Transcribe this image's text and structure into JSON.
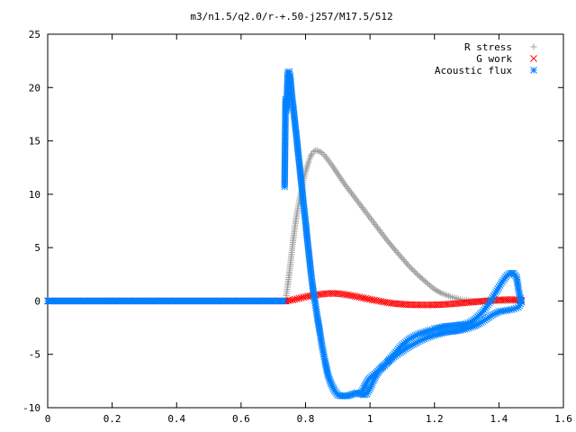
{
  "chart_data": {
    "type": "scatter",
    "title": "m3/n1.5/q2.0/r-+.50-j257/M17.5/512",
    "xlabel": "",
    "ylabel": "",
    "xlim": [
      0,
      1.6
    ],
    "ylim": [
      -10,
      25
    ],
    "x_ticks": [
      0,
      0.2,
      0.4,
      0.6,
      0.8,
      1,
      1.2,
      1.4,
      1.6
    ],
    "x_tick_labels": [
      "0",
      "0.2",
      "0.4",
      "0.6",
      "0.8",
      "1",
      "1.2",
      "1.4",
      "1.6"
    ],
    "y_ticks": [
      -10,
      -5,
      0,
      5,
      10,
      15,
      20,
      25
    ],
    "y_tick_labels": [
      "-10",
      "-5",
      "0",
      "5",
      "10",
      "15",
      "20",
      "25"
    ],
    "grid": false,
    "legend_position": "top-right",
    "series": [
      {
        "name": "R stress",
        "marker": "plus",
        "color": "#a0a0a0",
        "points": [
          [
            0.74,
            0.5
          ],
          [
            0.745,
            1.5
          ],
          [
            0.75,
            2.7
          ],
          [
            0.755,
            4.0
          ],
          [
            0.76,
            5.3
          ],
          [
            0.765,
            6.5
          ],
          [
            0.77,
            7.6
          ],
          [
            0.775,
            8.5
          ],
          [
            0.78,
            9.3
          ],
          [
            0.785,
            10.0
          ],
          [
            0.79,
            10.8
          ],
          [
            0.795,
            11.5
          ],
          [
            0.8,
            12.1
          ],
          [
            0.805,
            12.6
          ],
          [
            0.81,
            13.1
          ],
          [
            0.815,
            13.5
          ],
          [
            0.82,
            13.8
          ],
          [
            0.825,
            14.0
          ],
          [
            0.83,
            14.1
          ],
          [
            0.835,
            14.1
          ],
          [
            0.84,
            14.05
          ],
          [
            0.85,
            13.9
          ],
          [
            0.86,
            13.6
          ],
          [
            0.88,
            12.8
          ],
          [
            0.9,
            11.9
          ],
          [
            0.92,
            11.0
          ],
          [
            0.95,
            9.8
          ],
          [
            0.98,
            8.6
          ],
          [
            1.0,
            7.8
          ],
          [
            1.02,
            7.0
          ],
          [
            1.05,
            5.8
          ],
          [
            1.08,
            4.7
          ],
          [
            1.1,
            4.0
          ],
          [
            1.12,
            3.3
          ],
          [
            1.15,
            2.4
          ],
          [
            1.18,
            1.6
          ],
          [
            1.2,
            1.1
          ],
          [
            1.22,
            0.75
          ],
          [
            1.25,
            0.4
          ],
          [
            1.28,
            0.15
          ],
          [
            1.3,
            0.05
          ],
          [
            1.32,
            0.0
          ],
          [
            1.35,
            0.0
          ],
          [
            1.4,
            0.0
          ],
          [
            1.45,
            0.0
          ],
          [
            1.47,
            0.0
          ]
        ]
      },
      {
        "name": "G work",
        "marker": "cross",
        "color": "#ff0000",
        "points": [
          [
            0.74,
            0.0
          ],
          [
            0.76,
            0.1
          ],
          [
            0.78,
            0.25
          ],
          [
            0.8,
            0.4
          ],
          [
            0.82,
            0.5
          ],
          [
            0.84,
            0.6
          ],
          [
            0.86,
            0.68
          ],
          [
            0.88,
            0.72
          ],
          [
            0.9,
            0.7
          ],
          [
            0.92,
            0.62
          ],
          [
            0.94,
            0.52
          ],
          [
            0.96,
            0.4
          ],
          [
            0.98,
            0.28
          ],
          [
            1.0,
            0.15
          ],
          [
            1.02,
            0.04
          ],
          [
            1.04,
            -0.08
          ],
          [
            1.06,
            -0.18
          ],
          [
            1.08,
            -0.25
          ],
          [
            1.1,
            -0.3
          ],
          [
            1.12,
            -0.34
          ],
          [
            1.14,
            -0.36
          ],
          [
            1.16,
            -0.37
          ],
          [
            1.18,
            -0.37
          ],
          [
            1.2,
            -0.36
          ],
          [
            1.22,
            -0.34
          ],
          [
            1.24,
            -0.3
          ],
          [
            1.26,
            -0.26
          ],
          [
            1.28,
            -0.2
          ],
          [
            1.3,
            -0.15
          ],
          [
            1.32,
            -0.1
          ],
          [
            1.34,
            -0.05
          ],
          [
            1.36,
            0.0
          ],
          [
            1.38,
            0.05
          ],
          [
            1.4,
            0.1
          ],
          [
            1.42,
            0.12
          ],
          [
            1.44,
            0.13
          ],
          [
            1.46,
            0.1
          ],
          [
            1.47,
            0.05
          ]
        ]
      },
      {
        "name": "Acoustic flux",
        "marker": "star",
        "color": "#0080ff",
        "points": [
          [
            0.735,
            10.7
          ],
          [
            0.738,
            18.9
          ],
          [
            0.741,
            17.9
          ],
          [
            0.745,
            21.4
          ],
          [
            0.749,
            21.5
          ],
          [
            0.753,
            20.8
          ],
          [
            0.757,
            19.4
          ],
          [
            0.761,
            18.4
          ],
          [
            0.765,
            17.3
          ],
          [
            0.769,
            16.2
          ],
          [
            0.773,
            15.1
          ],
          [
            0.777,
            13.9
          ],
          [
            0.781,
            12.8
          ],
          [
            0.785,
            11.6
          ],
          [
            0.789,
            10.5
          ],
          [
            0.793,
            9.3
          ],
          [
            0.797,
            8.2
          ],
          [
            0.801,
            7.1
          ],
          [
            0.805,
            5.9
          ],
          [
            0.809,
            4.8
          ],
          [
            0.813,
            3.7
          ],
          [
            0.817,
            2.6
          ],
          [
            0.821,
            1.6
          ],
          [
            0.825,
            0.7
          ],
          [
            0.829,
            0.0
          ],
          [
            0.833,
            -0.8
          ],
          [
            0.837,
            -1.6
          ],
          [
            0.841,
            -2.3
          ],
          [
            0.845,
            -3.0
          ],
          [
            0.85,
            -4.0
          ],
          [
            0.855,
            -4.8
          ],
          [
            0.86,
            -5.6
          ],
          [
            0.865,
            -6.3
          ],
          [
            0.87,
            -7.0
          ],
          [
            0.88,
            -7.8
          ],
          [
            0.89,
            -8.4
          ],
          [
            0.9,
            -8.8
          ],
          [
            0.91,
            -8.9
          ],
          [
            0.92,
            -8.9
          ],
          [
            0.93,
            -8.9
          ],
          [
            0.94,
            -8.8
          ],
          [
            0.95,
            -8.7
          ],
          [
            0.96,
            -8.6
          ],
          [
            0.97,
            -8.7
          ],
          [
            0.98,
            -8.8
          ],
          [
            0.99,
            -8.7
          ],
          [
            1.0,
            -8.2
          ],
          [
            1.01,
            -7.5
          ],
          [
            1.02,
            -6.9
          ],
          [
            1.03,
            -6.5
          ],
          [
            1.04,
            -6.2
          ],
          [
            1.05,
            -5.9
          ],
          [
            1.06,
            -5.5
          ],
          [
            1.08,
            -4.8
          ],
          [
            1.1,
            -4.1
          ],
          [
            1.12,
            -3.6
          ],
          [
            1.15,
            -3.1
          ],
          [
            1.18,
            -2.8
          ],
          [
            1.2,
            -2.6
          ],
          [
            1.23,
            -2.4
          ],
          [
            1.26,
            -2.3
          ],
          [
            1.29,
            -2.2
          ],
          [
            1.31,
            -2.0
          ],
          [
            1.33,
            -1.6
          ],
          [
            1.35,
            -1.0
          ],
          [
            1.37,
            -0.2
          ],
          [
            1.39,
            0.8
          ],
          [
            1.41,
            1.8
          ],
          [
            1.425,
            2.4
          ],
          [
            1.435,
            2.6
          ],
          [
            1.445,
            2.6
          ],
          [
            1.455,
            2.2
          ],
          [
            1.46,
            1.2
          ],
          [
            1.465,
            0.4
          ],
          [
            1.47,
            -0.1
          ],
          [
            1.46,
            -0.6
          ],
          [
            1.44,
            -0.8
          ],
          [
            1.42,
            -0.9
          ],
          [
            1.4,
            -1.0
          ],
          [
            1.38,
            -1.3
          ],
          [
            1.36,
            -1.7
          ],
          [
            1.34,
            -2.1
          ],
          [
            1.32,
            -2.4
          ],
          [
            1.3,
            -2.6
          ],
          [
            1.27,
            -2.8
          ],
          [
            1.24,
            -2.9
          ],
          [
            1.21,
            -3.1
          ],
          [
            1.18,
            -3.4
          ],
          [
            1.15,
            -3.8
          ],
          [
            1.12,
            -4.3
          ],
          [
            1.09,
            -4.9
          ],
          [
            1.06,
            -5.6
          ],
          [
            1.04,
            -6.1
          ],
          [
            1.02,
            -6.7
          ],
          [
            1.0,
            -7.2
          ],
          [
            0.99,
            -7.6
          ],
          [
            0.98,
            -8.2
          ],
          [
            0.97,
            -8.7
          ]
        ]
      }
    ]
  }
}
